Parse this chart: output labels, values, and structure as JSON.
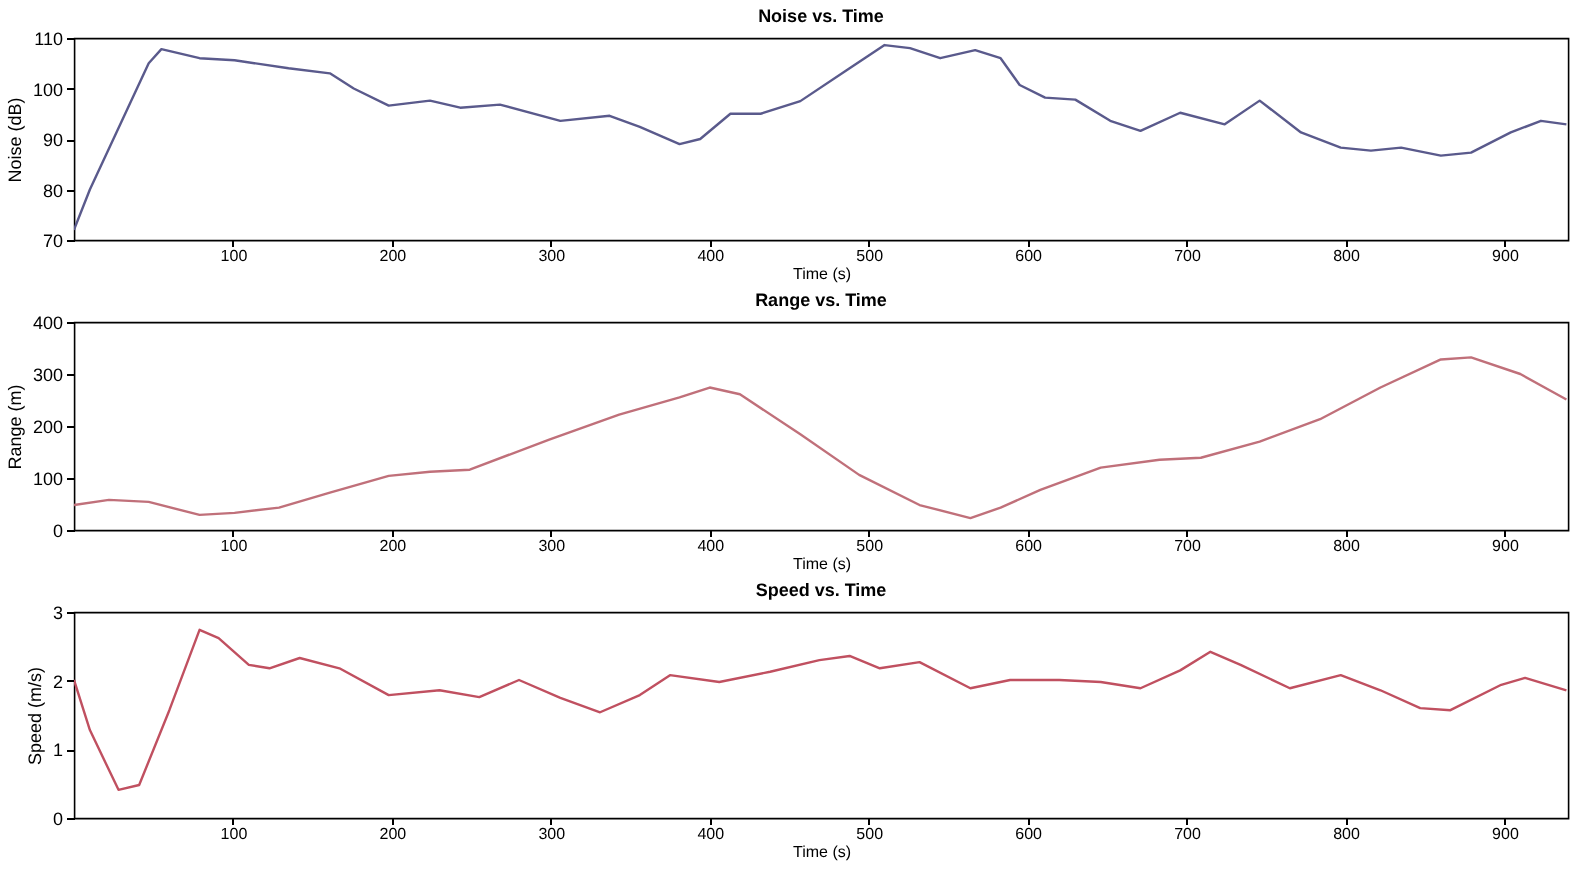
{
  "chart_data": [
    {
      "type": "line",
      "title": "Noise vs. Time",
      "xlabel": "Time (s)",
      "ylabel": "Noise (dB)",
      "xlim": [
        0,
        940
      ],
      "xticks": [
        100,
        200,
        300,
        400,
        500,
        600,
        700,
        800,
        900
      ],
      "ylim": [
        70,
        110
      ],
      "yticks": [
        70,
        80,
        90,
        100,
        110
      ],
      "grid": false,
      "marker": "none",
      "line_style": "solid",
      "series": [
        {
          "color": "#5a5a8c",
          "x": [
            0,
            10,
            47,
            55,
            79,
            101,
            135,
            161,
            176,
            198,
            224,
            243,
            268,
            306,
            337,
            356,
            381,
            394,
            413,
            432,
            457,
            488,
            510,
            526,
            545,
            567,
            583,
            595,
            611,
            630,
            652,
            671,
            696,
            724,
            746,
            772,
            797,
            816,
            835,
            860,
            879,
            904,
            923,
            939
          ],
          "values": [
            72,
            80,
            105,
            107.8,
            106,
            105.6,
            104,
            103,
            100,
            96.6,
            97.6,
            96.2,
            96.8,
            93.6,
            94.6,
            92.4,
            89,
            90,
            95,
            95,
            97.5,
            104,
            108.6,
            108,
            106,
            107.6,
            106,
            100.7,
            98.2,
            97.8,
            93.6,
            91.6,
            95.2,
            92.9,
            97.6,
            91.3,
            88.3,
            87.7,
            88.3,
            86.7,
            87.3,
            91.3,
            93.6,
            92.9
          ]
        }
      ]
    },
    {
      "type": "line",
      "title": "Range vs. Time",
      "xlabel": "Time (s)",
      "ylabel": "Range (m)",
      "xlim": [
        0,
        940
      ],
      "xticks": [
        100,
        200,
        300,
        400,
        500,
        600,
        700,
        800,
        900
      ],
      "ylim": [
        0,
        400
      ],
      "yticks": [
        0,
        100,
        200,
        300,
        400
      ],
      "grid": false,
      "marker": "none",
      "line_style": "solid",
      "series": [
        {
          "color": "#c0707a",
          "x": [
            0,
            22,
            47,
            79,
            101,
            129,
            161,
            198,
            224,
            249,
            299,
            343,
            381,
            400,
            419,
            457,
            494,
            532,
            564,
            583,
            608,
            646,
            683,
            709,
            746,
            784,
            822,
            860,
            879,
            910,
            939
          ],
          "values": [
            48,
            58,
            54,
            29,
            33,
            43,
            72,
            104,
            112,
            116,
            174,
            222,
            255,
            274,
            261,
            184,
            106,
            48,
            23,
            43,
            77,
            120,
            135,
            139,
            170,
            213,
            274,
            328,
            332,
            300,
            251
          ]
        }
      ]
    },
    {
      "type": "line",
      "title": "Speed vs. Time",
      "xlabel": "Time (s)",
      "ylabel": "Speed (m/s)",
      "xlim": [
        0,
        940
      ],
      "xticks": [
        100,
        200,
        300,
        400,
        500,
        600,
        700,
        800,
        900
      ],
      "ylim": [
        0,
        3
      ],
      "yticks": [
        0,
        1,
        2,
        3
      ],
      "grid": false,
      "marker": "none",
      "line_style": "solid",
      "series": [
        {
          "color": "#c05060",
          "x": [
            0,
            10,
            28,
            41,
            60,
            79,
            91,
            110,
            123,
            142,
            167,
            198,
            230,
            255,
            280,
            306,
            331,
            356,
            375,
            406,
            438,
            469,
            488,
            507,
            532,
            564,
            589,
            620,
            646,
            671,
            696,
            715,
            734,
            765,
            797,
            822,
            847,
            866,
            898,
            913,
            939
          ],
          "values": [
            2.01,
            1.28,
            0.41,
            0.48,
            1.57,
            2.74,
            2.62,
            2.23,
            2.18,
            2.33,
            2.18,
            1.79,
            1.86,
            1.76,
            2.01,
            1.75,
            1.54,
            1.79,
            2.08,
            1.98,
            2.13,
            2.3,
            2.36,
            2.18,
            2.27,
            1.89,
            2.01,
            2.01,
            1.98,
            1.89,
            2.15,
            2.42,
            2.23,
            1.89,
            2.08,
            1.86,
            1.6,
            1.57,
            1.94,
            2.04,
            1.86
          ]
        }
      ]
    }
  ]
}
